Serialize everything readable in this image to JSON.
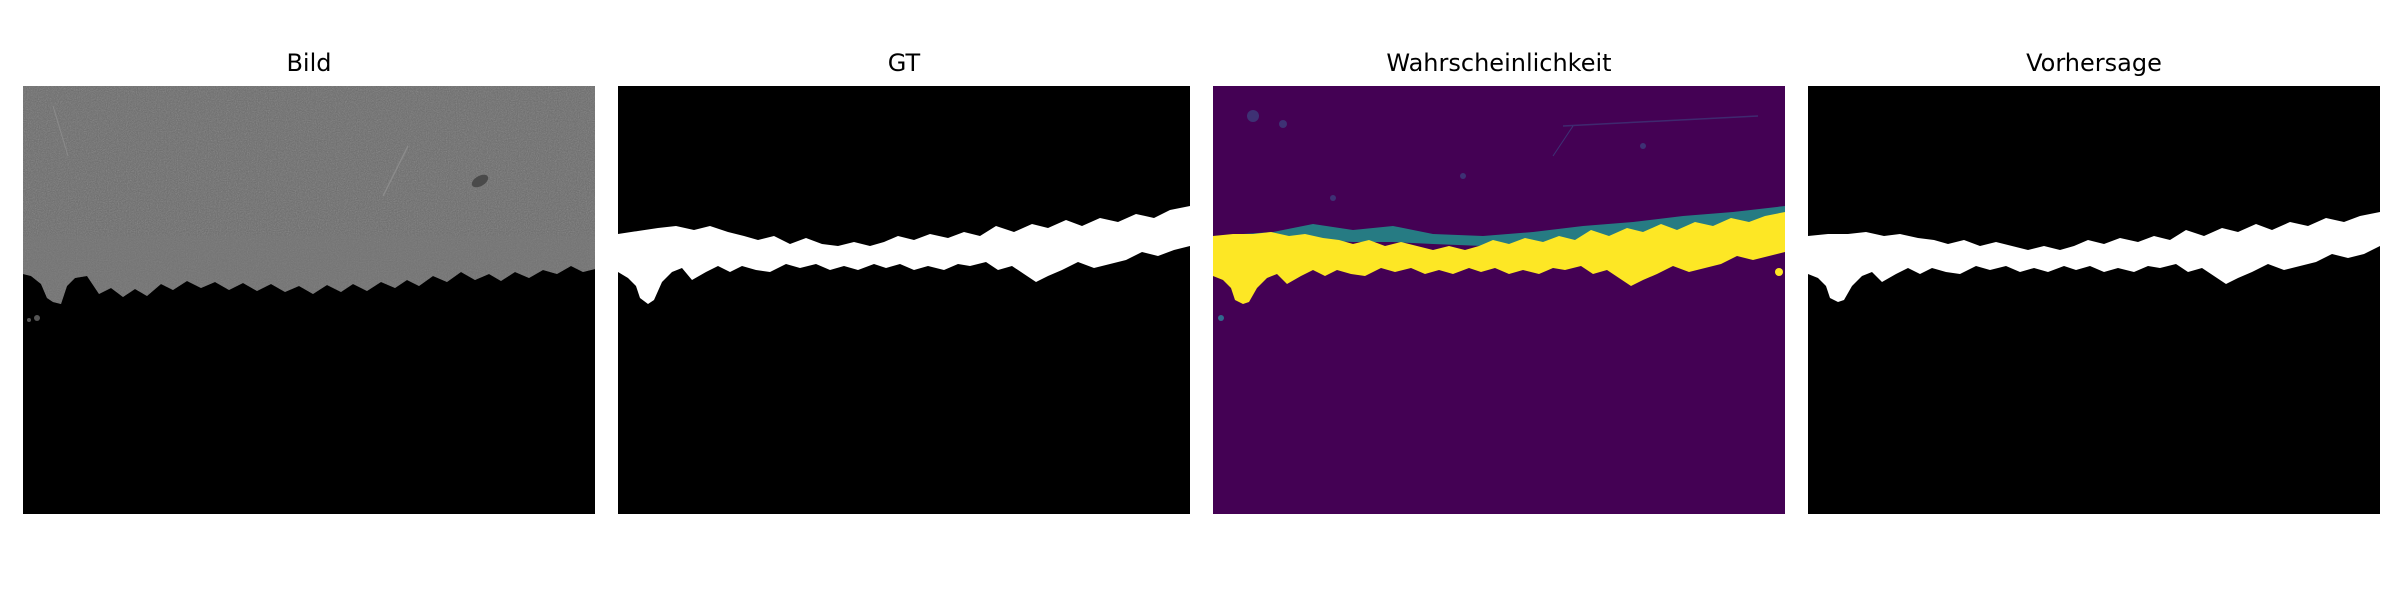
{
  "figure": {
    "panels": [
      {
        "title": "Bild"
      },
      {
        "title": "GT"
      },
      {
        "title": "Wahrscheinlichkeit"
      },
      {
        "title": "Vorhersage"
      }
    ]
  },
  "colors": {
    "background": "#ffffff",
    "mask_bg": "#000000",
    "mask_fg": "#ffffff",
    "image_gray": "#6a6a6a",
    "prob_low": "#440154",
    "prob_high": "#fde725",
    "prob_mid": "#21918c"
  }
}
